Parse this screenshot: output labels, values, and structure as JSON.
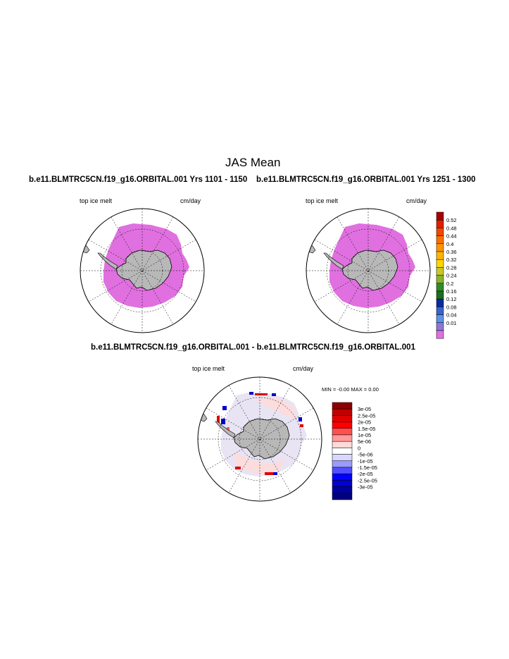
{
  "page_title": "JAS Mean",
  "panels": [
    {
      "run_label": "b.e11.BLMTRC5CN.f19_g16.ORBITAL.001  Yrs 1101 - 1150",
      "left_label": "top ice melt",
      "right_label": "cm/day"
    },
    {
      "run_label": "b.e11.BLMTRC5CN.f19_g16.ORBITAL.001  Yrs 1251 - 1300",
      "left_label": "top ice melt",
      "right_label": "cm/day"
    }
  ],
  "diff_panel": {
    "title": "b.e11.BLMTRC5CN.f19_g16.ORBITAL.001 - b.e11.BLMTRC5CN.f19_g16.ORBITAL.001",
    "left_label": "top ice melt",
    "right_label": "cm/day",
    "minmax": "MIN =  -0.00 MAX =   0.00"
  },
  "colorbar_main": {
    "labels": [
      "0.52",
      "0.48",
      "0.44",
      "0.4",
      "0.36",
      "0.32",
      "0.28",
      "0.24",
      "0.2",
      "0.16",
      "0.12",
      "0.08",
      "0.04",
      "0.01"
    ],
    "colors": [
      "#a50000",
      "#dd1f00",
      "#f24800",
      "#ff6f00",
      "#ff9400",
      "#ffb400",
      "#ffd500",
      "#c8c828",
      "#8ab42a",
      "#2f8b2a",
      "#1c6e1e",
      "#0a2aa0",
      "#3a62d0",
      "#5d93e8",
      "#8c78d8",
      "#e070e0"
    ]
  },
  "colorbar_diff": {
    "labels": [
      "3e-05",
      "2.5e-05",
      "2e-05",
      "1.5e-05",
      "1e-05",
      "5e-06",
      "0",
      "-5e-06",
      "-1e-05",
      "-1.5e-05",
      "-2e-05",
      "-2.5e-05",
      "-3e-05"
    ],
    "colors": [
      "#8b0000",
      "#c00000",
      "#e00000",
      "#ff0000",
      "#ff5050",
      "#ff9a9a",
      "#ffd8d8",
      "#ffffff",
      "#d8d8ff",
      "#9a9aff",
      "#5050ff",
      "#0000ff",
      "#0000d0",
      "#0000a0",
      "#000080"
    ]
  }
}
